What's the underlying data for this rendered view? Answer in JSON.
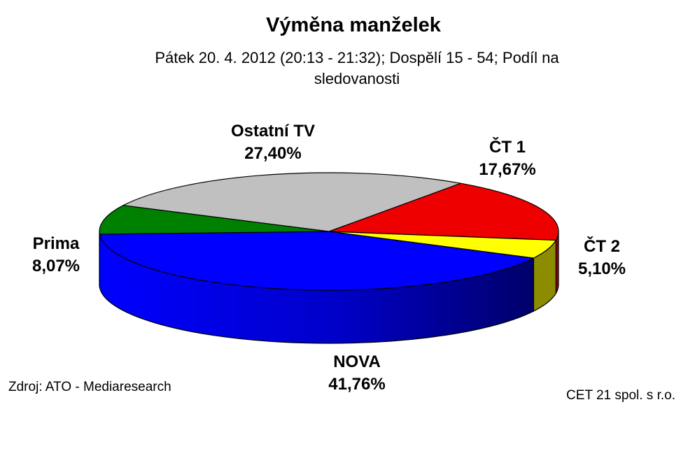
{
  "chart_data": {
    "type": "pie",
    "title": "Výměna manželek",
    "subtitle": "Pátek 20. 4. 2012 (20:13 - 21:32); Dospělí 15 - 54; Podíl na sledovanosti",
    "slices": [
      {
        "name": "ČT 1",
        "value": 17.67,
        "label": "17,67%",
        "color": "#ee0000",
        "side_color": "#990000"
      },
      {
        "name": "ČT 2",
        "value": 5.1,
        "label": "5,10%",
        "color": "#ffff00",
        "side_color": "#8c8c00"
      },
      {
        "name": "NOVA",
        "value": 41.76,
        "label": "41,76%",
        "color": "#0000ff",
        "side_color": "#00008a"
      },
      {
        "name": "Prima",
        "value": 8.07,
        "label": "8,07%",
        "color": "#008000",
        "side_color": "#004a00"
      },
      {
        "name": "Ostatní TV",
        "value": 27.4,
        "label": "27,40%",
        "color": "#c0c0c0",
        "side_color": "#777777"
      }
    ],
    "style": "3d"
  },
  "footer": {
    "source": "Zdroj: ATO - Mediaresearch",
    "company": "CET 21 spol. s r.o."
  }
}
